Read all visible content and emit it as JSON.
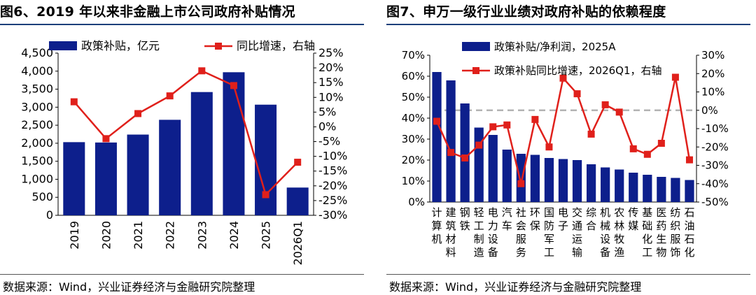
{
  "left": {
    "title": "图6、2019 年以来非金融上市公司政府补贴情况",
    "source": "数据来源：Wind，兴业证券经济与金融研究院整理",
    "chart_data": {
      "type": "bar",
      "categories": [
        "2019",
        "2020",
        "2021",
        "2022",
        "2023",
        "2024",
        "2025",
        "2026Q1"
      ],
      "series": [
        {
          "name": "政策补贴，亿元",
          "type": "bar",
          "axis": "left",
          "values": [
            2030,
            2020,
            2240,
            2650,
            3420,
            3970,
            3070,
            770
          ]
        },
        {
          "name": "同比增速，右轴",
          "type": "line",
          "axis": "right",
          "values": [
            8.5,
            -4,
            4.5,
            10.5,
            19,
            14,
            -23,
            -12
          ]
        }
      ],
      "ylim": [
        0,
        4500
      ],
      "yticks": [
        "0",
        "500",
        "1,000",
        "1,500",
        "2,000",
        "2,500",
        "3,000",
        "3,500",
        "4,000",
        "4,500"
      ],
      "ylim_right": [
        -30,
        25
      ],
      "yticks_right": [
        "-30%",
        "-25%",
        "-20%",
        "-15%",
        "-10%",
        "-5%",
        "0%",
        "5%",
        "10%",
        "15%",
        "20%",
        "25%"
      ],
      "bar_color": "#0d1f8c",
      "line_color": "#e0201b",
      "legend_position": "top"
    }
  },
  "right": {
    "title": "图7、申万一级行业业绩对政府补贴的依赖程度",
    "source": "数据来源：Wind，兴业证券经济与金融研究院整理",
    "chart_data": {
      "type": "bar",
      "categories": [
        "计算机",
        "建筑材料",
        "钢铁",
        "轻工制造",
        "电力设备",
        "汽车",
        "社会服务",
        "环保",
        "国防军工",
        "电子",
        "交通运输",
        "综合",
        "机械设备",
        "农林牧渔",
        "传媒",
        "基础化工",
        "医药生物",
        "纺织服饰",
        "石油石化"
      ],
      "series": [
        {
          "name": "政策补贴/净利润，2025A",
          "type": "bar",
          "axis": "left",
          "values": [
            62,
            58,
            47,
            35.5,
            32,
            25,
            23,
            22.5,
            21,
            20.5,
            20,
            18,
            16.5,
            15.5,
            14,
            13,
            12,
            11.5,
            10.5
          ]
        },
        {
          "name": "政策补贴同比增速，2026Q1，右轴",
          "type": "line",
          "axis": "right",
          "values": [
            -6,
            -23,
            -26,
            -19,
            -9,
            -8,
            -40,
            -5,
            -20,
            17.5,
            9,
            -13,
            3,
            -1,
            -21,
            -24,
            -18,
            18,
            -27
          ]
        }
      ],
      "ylim": [
        0,
        70
      ],
      "yticks": [
        "0%",
        "10%",
        "20%",
        "30%",
        "40%",
        "50%",
        "60%",
        "70%"
      ],
      "ylim_right": [
        -50,
        30
      ],
      "yticks_right": [
        "-50%",
        "-40%",
        "-30%",
        "-20%",
        "-10%",
        "0%",
        "10%",
        "20%",
        "30%"
      ],
      "reference_line_right": 0,
      "bar_color": "#0d1f8c",
      "line_color": "#e0201b",
      "legend_position": "top"
    }
  }
}
